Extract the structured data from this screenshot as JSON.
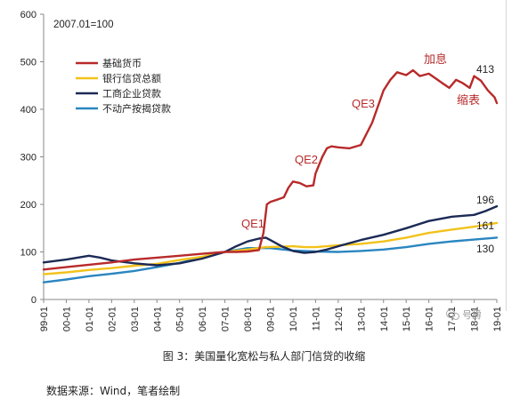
{
  "caption": "图 3：美国量化宽松与私人部门信贷的收缩",
  "source": "数据来源：Wind，笔者绘制",
  "watermark": "号爵",
  "chart_data": {
    "type": "line",
    "note": "2007.01=100",
    "ylim": [
      0,
      600
    ],
    "yticks": [
      0,
      100,
      200,
      300,
      400,
      500,
      600
    ],
    "xlim": [
      1999.0,
      2019.0
    ],
    "xtick_labels": [
      "99-01",
      "00-01",
      "01-01",
      "02-01",
      "03-01",
      "04-01",
      "05-01",
      "06-01",
      "07-01",
      "08-01",
      "09-01",
      "10-01",
      "11-01",
      "12-01",
      "13-01",
      "14-01",
      "15-01",
      "16-01",
      "17-01",
      "18-01",
      "19-01"
    ],
    "grid": false,
    "legend_position": "top-left",
    "series": [
      {
        "name": "基础货币",
        "color": "#b82a2a",
        "end_label": "413",
        "x": [
          1999.0,
          2000.0,
          2001.0,
          2002.0,
          2003.0,
          2004.0,
          2005.0,
          2006.0,
          2007.0,
          2007.5,
          2008.0,
          2008.5,
          2008.7,
          2008.85,
          2009.0,
          2009.3,
          2009.6,
          2009.8,
          2010.0,
          2010.3,
          2010.6,
          2010.9,
          2011.0,
          2011.3,
          2011.5,
          2011.7,
          2012.0,
          2012.5,
          2013.0,
          2013.5,
          2014.0,
          2014.3,
          2014.6,
          2015.0,
          2015.3,
          2015.6,
          2016.0,
          2016.3,
          2016.6,
          2016.9,
          2017.2,
          2017.5,
          2017.8,
          2018.0,
          2018.3,
          2018.6,
          2018.9,
          2019.0
        ],
        "values": [
          63,
          68,
          73,
          78,
          84,
          88,
          92,
          96,
          100,
          100,
          101,
          104,
          140,
          200,
          205,
          210,
          215,
          235,
          248,
          245,
          238,
          240,
          265,
          300,
          318,
          322,
          320,
          318,
          325,
          372,
          440,
          462,
          478,
          472,
          482,
          470,
          475,
          465,
          455,
          445,
          462,
          455,
          445,
          470,
          460,
          440,
          425,
          413
        ]
      },
      {
        "name": "银行信贷总额",
        "color": "#f2c21a",
        "end_label": "161",
        "x": [
          1999.0,
          2000.0,
          2001.0,
          2002.0,
          2003.0,
          2004.0,
          2005.0,
          2006.0,
          2007.0,
          2008.0,
          2008.8,
          2009.5,
          2010.0,
          2010.5,
          2011.0,
          2011.5,
          2012.0,
          2013.0,
          2014.0,
          2015.0,
          2016.0,
          2017.0,
          2018.0,
          2019.0
        ],
        "values": [
          53,
          57,
          62,
          66,
          71,
          75,
          83,
          90,
          100,
          105,
          110,
          111,
          112,
          110,
          110,
          112,
          114,
          117,
          122,
          130,
          140,
          147,
          153,
          161
        ]
      },
      {
        "name": "工商企业贷款",
        "color": "#1c2a55",
        "end_label": "196",
        "x": [
          1999.0,
          2000.0,
          2000.5,
          2001.0,
          2001.5,
          2002.0,
          2002.5,
          2003.0,
          2003.5,
          2004.0,
          2004.5,
          2005.0,
          2006.0,
          2007.0,
          2007.5,
          2008.0,
          2008.5,
          2008.8,
          2009.0,
          2009.5,
          2010.0,
          2010.5,
          2011.0,
          2011.5,
          2012.0,
          2013.0,
          2014.0,
          2015.0,
          2016.0,
          2017.0,
          2018.0,
          2018.5,
          2019.0
        ],
        "values": [
          78,
          84,
          88,
          92,
          88,
          82,
          79,
          76,
          74,
          72,
          74,
          76,
          86,
          100,
          112,
          122,
          128,
          130,
          125,
          112,
          102,
          98,
          100,
          105,
          112,
          125,
          136,
          150,
          165,
          174,
          178,
          186,
          196
        ]
      },
      {
        "name": "不动产按揭贷款",
        "color": "#2a86c0",
        "end_label": "130",
        "x": [
          1999.0,
          2000.0,
          2001.0,
          2002.0,
          2003.0,
          2004.0,
          2005.0,
          2006.0,
          2007.0,
          2008.0,
          2009.0,
          2010.0,
          2011.0,
          2012.0,
          2013.0,
          2014.0,
          2015.0,
          2016.0,
          2017.0,
          2018.0,
          2019.0
        ],
        "values": [
          36,
          42,
          49,
          54,
          60,
          68,
          77,
          88,
          100,
          108,
          108,
          103,
          101,
          100,
          102,
          105,
          110,
          117,
          122,
          126,
          130
        ]
      }
    ],
    "annotations": [
      "QE1",
      "QE2",
      "QE3",
      "加息",
      "缩表"
    ]
  }
}
